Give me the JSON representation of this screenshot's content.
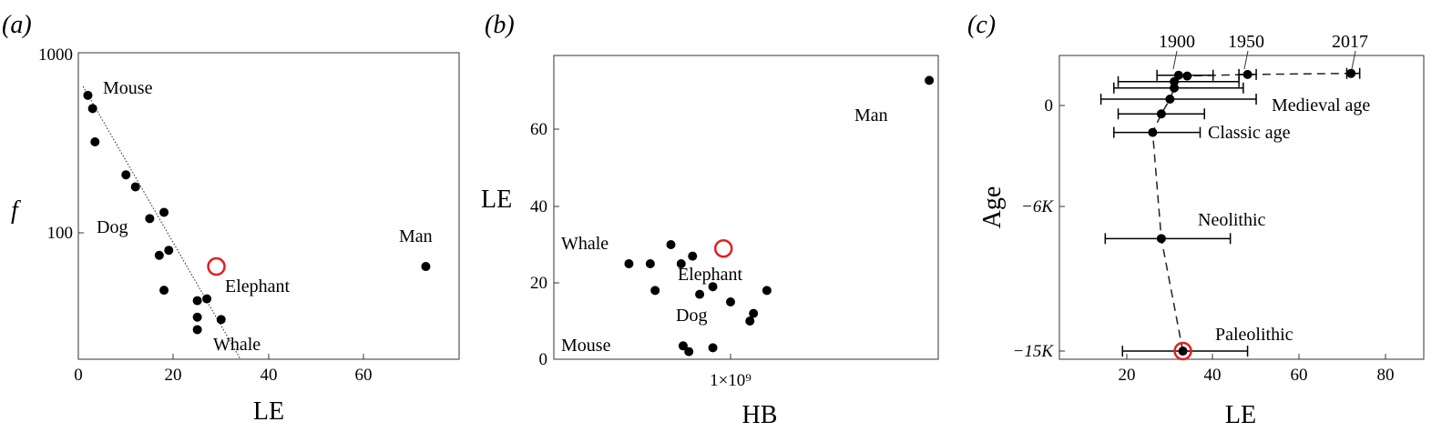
{
  "panels": [
    {
      "id": "a",
      "label": "(a)",
      "xlabel": "LE",
      "ylabel": "f",
      "xticks": [
        "0",
        "20",
        "40",
        "60"
      ],
      "yticks": [
        "100",
        "1000"
      ],
      "annotations": [
        "Mouse",
        "Dog",
        "Man",
        "Elephant",
        "Whale"
      ]
    },
    {
      "id": "b",
      "label": "(b)",
      "xlabel": "HB",
      "ylabel": "LE",
      "xticks": [
        "1×10⁹"
      ],
      "yticks": [
        "0",
        "20",
        "40",
        "60"
      ],
      "annotations": [
        "Man",
        "Whale",
        "Elephant",
        "Dog",
        "Mouse"
      ]
    },
    {
      "id": "c",
      "label": "(c)",
      "xlabel": "LE",
      "ylabel": "Age",
      "xticks": [
        "20",
        "40",
        "60",
        "80"
      ],
      "yticks": [
        "0",
        "−6K",
        "−15K"
      ],
      "annotations": [
        "1900",
        "1950",
        "2017",
        "Medieval age",
        "Classic age",
        "Neolithic",
        "Paleolithic"
      ]
    }
  ],
  "chart_data": [
    {
      "type": "scatter",
      "panel": "a",
      "xlabel": "LE",
      "ylabel": "f",
      "yscale": "log",
      "xlim": [
        0,
        80
      ],
      "ylim": [
        20,
        1000
      ],
      "points": [
        {
          "x": 2,
          "y": 580
        },
        {
          "x": 3,
          "y": 490
        },
        {
          "x": 3.5,
          "y": 320
        },
        {
          "x": 10,
          "y": 210
        },
        {
          "x": 12,
          "y": 180
        },
        {
          "x": 15,
          "y": 120
        },
        {
          "x": 18,
          "y": 130
        },
        {
          "x": 17,
          "y": 75
        },
        {
          "x": 19,
          "y": 80
        },
        {
          "x": 18,
          "y": 48
        },
        {
          "x": 25,
          "y": 42
        },
        {
          "x": 27,
          "y": 43
        },
        {
          "x": 25,
          "y": 34
        },
        {
          "x": 30,
          "y": 33
        },
        {
          "x": 25,
          "y": 29
        },
        {
          "x": 73,
          "y": 65
        }
      ],
      "fit_line": [
        {
          "x": 1,
          "y": 650
        },
        {
          "x": 34,
          "y": 20
        }
      ],
      "highlight": {
        "x": 29,
        "y": 65,
        "color": "#e02020"
      }
    },
    {
      "type": "scatter",
      "panel": "b",
      "xlabel": "HB",
      "ylabel": "LE",
      "xscale": "log",
      "xlim": [
        270000000,
        12000000000
      ],
      "ylim": [
        0,
        80
      ],
      "points": [
        {
          "x": 480000000,
          "y": 25
        },
        {
          "x": 560000000,
          "y": 25
        },
        {
          "x": 580000000,
          "y": 18
        },
        {
          "x": 650000000,
          "y": 30
        },
        {
          "x": 700000000,
          "y": 25
        },
        {
          "x": 760000000,
          "y": 27
        },
        {
          "x": 800000000,
          "y": 17
        },
        {
          "x": 880000000,
          "y": 19
        },
        {
          "x": 1000000000,
          "y": 15
        },
        {
          "x": 1150000000,
          "y": 10
        },
        {
          "x": 1180000000,
          "y": 12
        },
        {
          "x": 1300000000,
          "y": 18
        },
        {
          "x": 710000000,
          "y": 3.5
        },
        {
          "x": 740000000,
          "y": 2
        },
        {
          "x": 880000000,
          "y": 3
        },
        {
          "x": 4200000000,
          "y": 73
        }
      ],
      "highlight": {
        "x": 950000000,
        "y": 29,
        "color": "#e02020"
      }
    },
    {
      "type": "scatter",
      "panel": "c",
      "xlabel": "LE",
      "ylabel": "Age",
      "xlim": [
        5,
        90
      ],
      "points": [
        {
          "x": 33,
          "y": -15000,
          "xerr": [
            19,
            48
          ]
        },
        {
          "x": 28,
          "y": -8000,
          "xerr": [
            15,
            44
          ]
        },
        {
          "x": 26,
          "y": -1600,
          "xerr": [
            17,
            37
          ]
        },
        {
          "x": 28,
          "y": -500,
          "xerr": [
            18,
            38
          ]
        },
        {
          "x": 30,
          "y": 400,
          "xerr": [
            14,
            50
          ]
        },
        {
          "x": 31,
          "y": 1100,
          "xerr": [
            17,
            47
          ]
        },
        {
          "x": 31,
          "y": 1500,
          "xerr": [
            18,
            46
          ]
        },
        {
          "x": 32,
          "y": 1900,
          "xerr": [
            27,
            40
          ]
        },
        {
          "x": 34,
          "y": 1850,
          "xerr": [
            34,
            34
          ]
        },
        {
          "x": 48,
          "y": 1950,
          "xerr": [
            46,
            50
          ]
        },
        {
          "x": 72,
          "y": 2017,
          "xerr": [
            71,
            74
          ]
        }
      ],
      "highlight": {
        "x": 33,
        "y": -15000,
        "color": "#e02020"
      }
    }
  ]
}
